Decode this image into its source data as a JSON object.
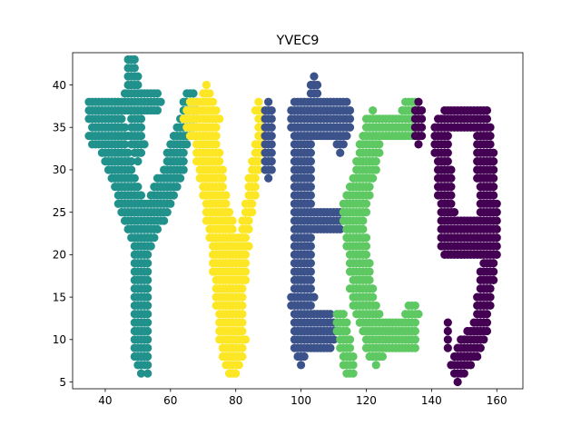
{
  "chart_data": {
    "type": "scatter",
    "title": "YVEC9",
    "xlabel": "",
    "ylabel": "",
    "xlim": [
      30,
      168
    ],
    "ylim": [
      4.2,
      43.8
    ],
    "xticks": [
      40,
      60,
      80,
      100,
      120,
      140,
      160
    ],
    "yticks": [
      5,
      10,
      15,
      20,
      25,
      30,
      35,
      40
    ],
    "grid": false,
    "legend": "none",
    "series": [
      {
        "letter": "Y",
        "color": "#21918c",
        "strokes": [
          {
            "x0": 36,
            "y0": 37,
            "x1": 44,
            "y1": 37,
            "hw": 1.6
          },
          {
            "x0": 36,
            "y0": 34,
            "x1": 46,
            "y1": 34,
            "hw": 1.4
          },
          {
            "x0": 40,
            "y0": 35.5,
            "x1": 49,
            "y1": 25,
            "hw": 3.2
          },
          {
            "x0": 46,
            "y0": 38,
            "x1": 56,
            "y1": 38,
            "hw": 1.2
          },
          {
            "x0": 48,
            "y0": 41.5,
            "x1": 50,
            "y1": 33,
            "hw": 2.0
          },
          {
            "x0": 66,
            "y0": 37,
            "x1": 61,
            "y1": 31,
            "hw": 2.3
          },
          {
            "x0": 62,
            "y0": 31,
            "x1": 52,
            "y1": 22,
            "hw": 2.6
          },
          {
            "x0": 51,
            "y0": 24,
            "x1": 51,
            "y1": 8,
            "hw": 2.2
          },
          {
            "x0": 52,
            "y0": 9,
            "x1": 53,
            "y1": 6,
            "hw": 0.9
          }
        ]
      },
      {
        "letter": "V",
        "color": "#fde725",
        "strokes": [
          {
            "x0": 66,
            "y0": 36,
            "x1": 73,
            "y1": 36,
            "hw": 2.2
          },
          {
            "x0": 71,
            "y0": 38,
            "x1": 71,
            "y1": 33,
            "hw": 2.0
          },
          {
            "x0": 71,
            "y0": 33,
            "x1": 76,
            "y1": 21,
            "hw": 3.6
          },
          {
            "x0": 76,
            "y0": 22,
            "x1": 79,
            "y1": 10,
            "hw": 4.0
          },
          {
            "x0": 79,
            "y0": 11,
            "x1": 79,
            "y1": 8,
            "hw": 2.3
          },
          {
            "x0": 79,
            "y0": 9,
            "x1": 82,
            "y1": 21,
            "hw": 2.0
          },
          {
            "x0": 82,
            "y0": 21,
            "x1": 88,
            "y1": 35,
            "hw": 1.4
          },
          {
            "x0": 87,
            "y0": 37,
            "x1": 88,
            "y1": 33,
            "hw": 1.0
          }
        ]
      },
      {
        "letter": "E",
        "color": "#3b528b",
        "strokes": [
          {
            "x0": 90,
            "y0": 37,
            "x1": 90,
            "y1": 30,
            "hw": 1.1
          },
          {
            "x0": 99,
            "y0": 36,
            "x1": 113,
            "y1": 36,
            "hw": 2.6
          },
          {
            "x0": 104,
            "y0": 40,
            "x1": 104,
            "y1": 37,
            "hw": 1.2
          },
          {
            "x0": 110,
            "y0": 36,
            "x1": 112,
            "y1": 33,
            "hw": 1.3
          },
          {
            "x0": 100,
            "y0": 35,
            "x1": 101,
            "y1": 15,
            "hw": 3.0
          },
          {
            "x0": 101,
            "y0": 24,
            "x1": 111,
            "y1": 24,
            "hw": 1.8
          },
          {
            "x0": 99,
            "y0": 15,
            "x1": 100,
            "y1": 9,
            "hw": 2.2
          },
          {
            "x0": 100,
            "y0": 11,
            "x1": 109,
            "y1": 11,
            "hw": 2.2
          }
        ]
      },
      {
        "letter": "C",
        "color": "#5ec962",
        "strokes": [
          {
            "x0": 124,
            "y0": 35,
            "x1": 134,
            "y1": 35,
            "hw": 1.8
          },
          {
            "x0": 132,
            "y0": 37,
            "x1": 135,
            "y1": 37,
            "hw": 1.0
          },
          {
            "x0": 122,
            "y0": 34,
            "x1": 116,
            "y1": 24,
            "hw": 3.0
          },
          {
            "x0": 116,
            "y0": 25,
            "x1": 119,
            "y1": 15,
            "hw": 3.2
          },
          {
            "x0": 118,
            "y0": 16,
            "x1": 123,
            "y1": 10,
            "hw": 3.0
          },
          {
            "x0": 122,
            "y0": 10.5,
            "x1": 134,
            "y1": 10.5,
            "hw": 2.0
          },
          {
            "x0": 133,
            "y0": 13,
            "x1": 135,
            "y1": 13,
            "hw": 1.2
          },
          {
            "x0": 112,
            "y0": 12,
            "x1": 115,
            "y1": 7,
            "hw": 1.8
          }
        ]
      },
      {
        "letter": "9",
        "color": "#440154",
        "strokes": [
          {
            "x0": 136,
            "y0": 37,
            "x1": 136,
            "y1": 34,
            "hw": 1.0
          },
          {
            "x0": 145,
            "y0": 36,
            "x1": 156,
            "y1": 36,
            "hw": 1.8
          },
          {
            "x0": 143,
            "y0": 34,
            "x1": 145,
            "y1": 23,
            "hw": 2.4
          },
          {
            "x0": 145,
            "y0": 22,
            "x1": 155,
            "y1": 22,
            "hw": 2.4
          },
          {
            "x0": 156,
            "y0": 34,
            "x1": 158,
            "y1": 21,
            "hw": 2.8
          },
          {
            "x0": 158,
            "y0": 21,
            "x1": 155,
            "y1": 11,
            "hw": 2.2
          },
          {
            "x0": 155,
            "y0": 11,
            "x1": 148,
            "y1": 7,
            "hw": 2.2
          },
          {
            "x0": 145,
            "y0": 12,
            "x1": 145,
            "y1": 9,
            "hw": 0.9
          }
        ]
      }
    ]
  }
}
